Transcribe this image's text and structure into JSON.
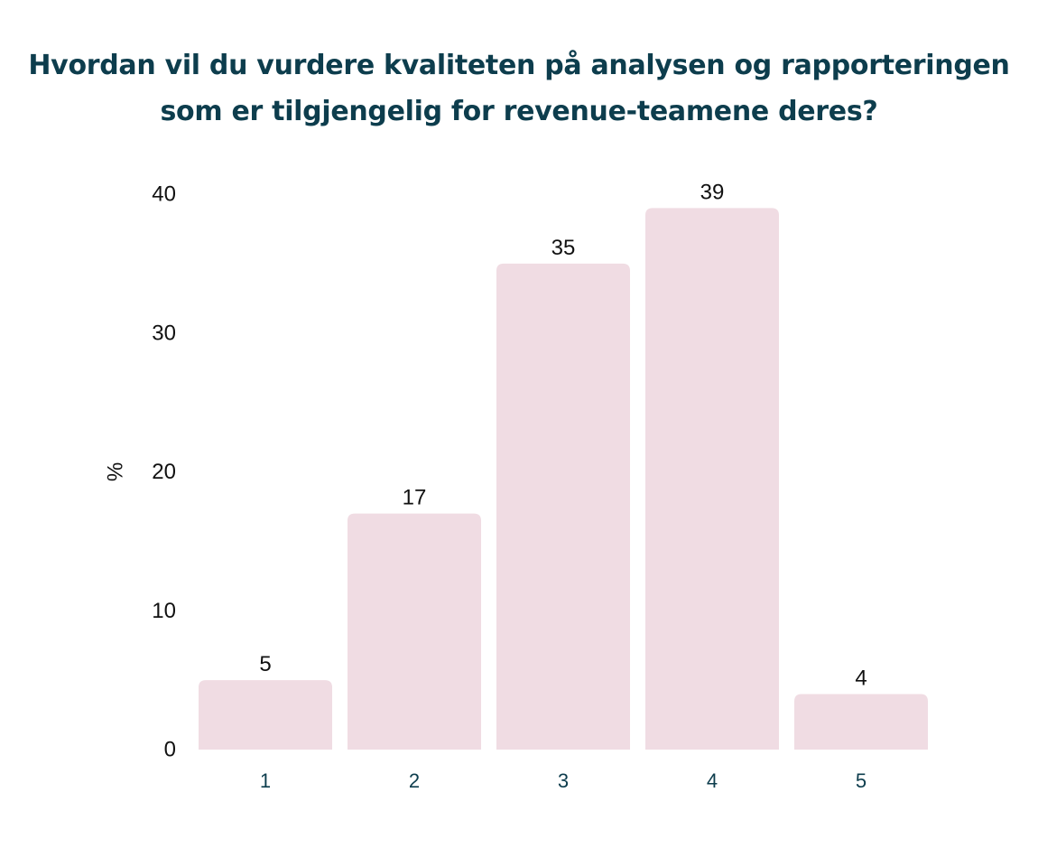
{
  "title": {
    "line1": "Hvordan vil du vurdere kvaliteten på analysen og rapporteringen",
    "line2": "som er tilgjengelig for revenue-teamene deres?"
  },
  "colors": {
    "title": "#0d3d4d",
    "bar": "#f0dce3",
    "text": "#111111",
    "category_text": "#0d3d4d"
  },
  "chart_data": {
    "type": "bar",
    "title": "Hvordan vil du vurdere kvaliteten på analysen og rapporteringen som er tilgjengelig for revenue-teamene deres?",
    "categories": [
      "1",
      "2",
      "3",
      "4",
      "5"
    ],
    "values": [
      5,
      17,
      35,
      39,
      4
    ],
    "ylabel": "%",
    "xlabel": "",
    "ylim": [
      0,
      40
    ],
    "yticks": [
      0,
      10,
      20,
      30,
      40
    ],
    "grid": false,
    "data_labels": true
  }
}
